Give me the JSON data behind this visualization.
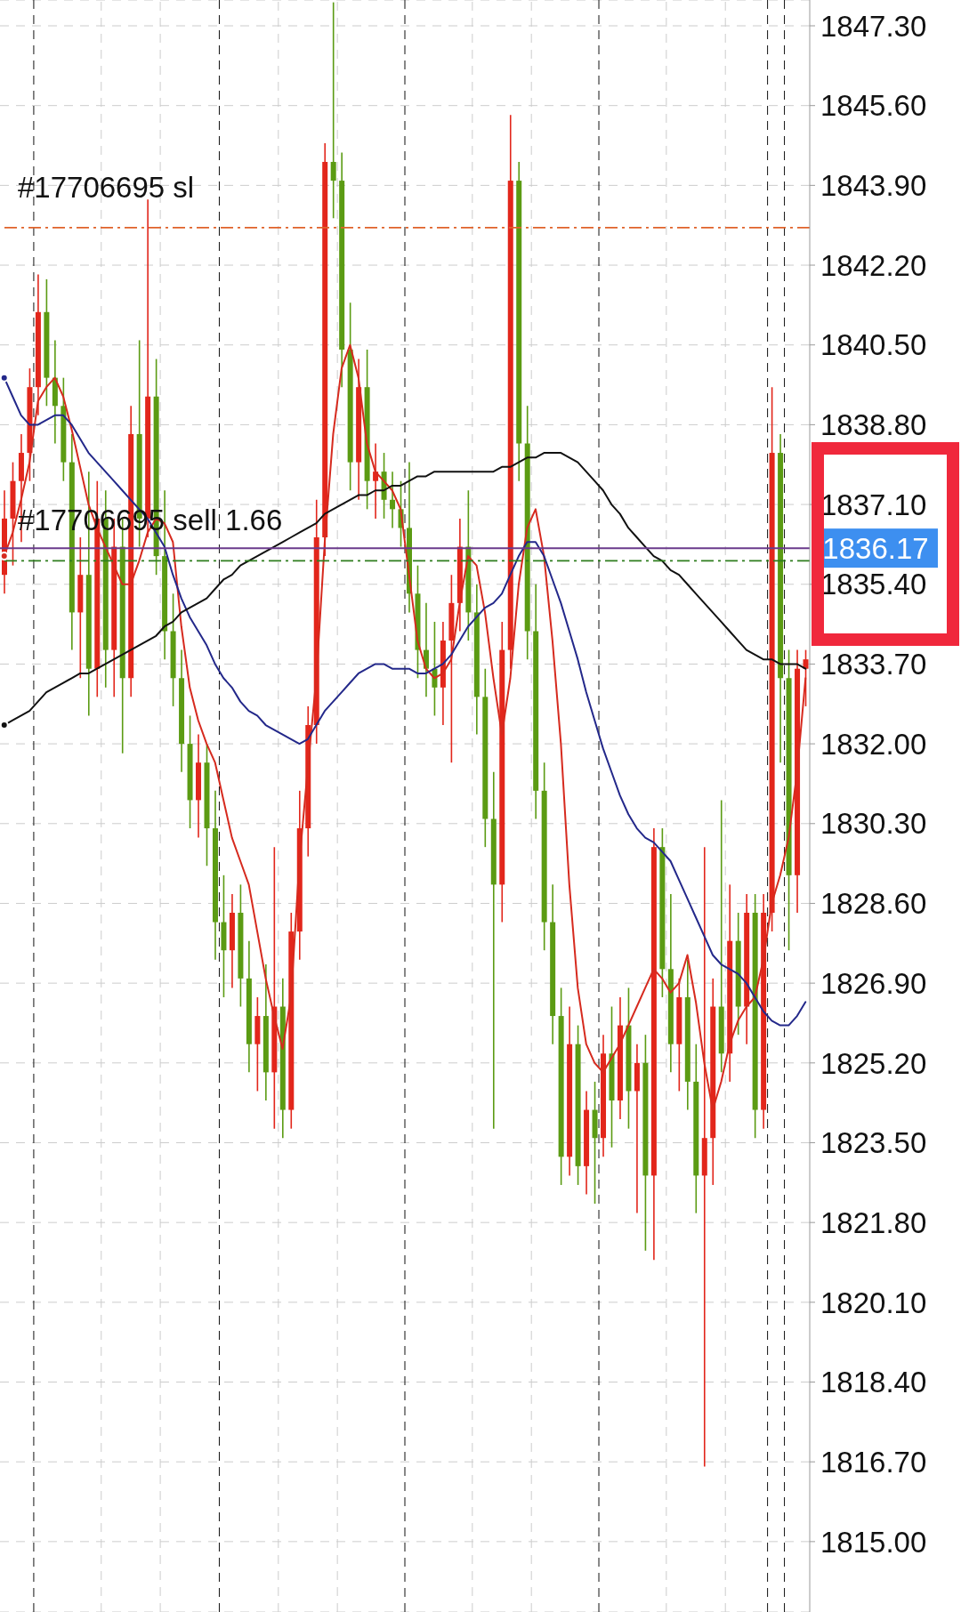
{
  "chart_data": {
    "type": "candlestick",
    "categories": [
      null,
      null,
      null,
      null,
      null,
      null,
      null,
      null,
      null,
      null,
      null,
      null,
      null,
      null,
      null,
      null,
      null,
      null,
      null,
      null,
      null,
      null,
      null,
      null,
      null,
      null,
      null,
      null,
      null,
      null,
      null,
      null,
      null,
      null,
      null,
      null,
      null,
      null,
      null,
      null,
      null,
      null,
      null,
      null,
      null,
      null,
      null,
      null,
      null,
      null,
      null,
      null,
      null,
      null,
      null,
      null,
      null,
      null,
      null,
      null,
      null,
      null,
      null,
      null,
      null,
      null,
      null,
      null,
      null,
      null,
      null,
      null,
      null,
      null,
      null,
      null,
      null,
      null,
      null,
      null,
      null,
      null,
      null,
      null,
      null,
      null,
      null,
      null,
      null,
      null,
      null,
      null,
      null,
      null,
      null,
      null
    ],
    "ohlc": [
      [
        1835.6,
        1837.4,
        1835.2,
        1836.8
      ],
      [
        1836.8,
        1838.0,
        1835.8,
        1837.6
      ],
      [
        1837.6,
        1838.6,
        1836.3,
        1838.2
      ],
      [
        1838.2,
        1840.0,
        1837.6,
        1839.6
      ],
      [
        1839.6,
        1842.0,
        1839.0,
        1841.2
      ],
      [
        1841.2,
        1841.9,
        1839.2,
        1839.8
      ],
      [
        1839.8,
        1840.6,
        1838.4,
        1839.2
      ],
      [
        1839.2,
        1839.8,
        1837.6,
        1838.0
      ],
      [
        1838.0,
        1838.6,
        1834.0,
        1834.8
      ],
      [
        1834.8,
        1836.4,
        1833.4,
        1835.6
      ],
      [
        1835.6,
        1837.8,
        1832.6,
        1833.6
      ],
      [
        1833.6,
        1837.6,
        1833.0,
        1836.8
      ],
      [
        1836.8,
        1837.4,
        1833.2,
        1834.0
      ],
      [
        1834.0,
        1836.8,
        1833.0,
        1836.2
      ],
      [
        1836.2,
        1836.8,
        1831.8,
        1833.4
      ],
      [
        1833.4,
        1839.2,
        1833.0,
        1838.6
      ],
      [
        1838.6,
        1840.6,
        1836.2,
        1836.8
      ],
      [
        1836.8,
        1843.6,
        1836.4,
        1839.4
      ],
      [
        1839.4,
        1840.2,
        1835.6,
        1836.0
      ],
      [
        1836.0,
        1837.4,
        1833.8,
        1834.4
      ],
      [
        1834.4,
        1835.2,
        1832.8,
        1833.4
      ],
      [
        1833.4,
        1834.0,
        1831.4,
        1832.0
      ],
      [
        1832.0,
        1832.6,
        1830.2,
        1830.8
      ],
      [
        1830.8,
        1832.2,
        1830.0,
        1831.6
      ],
      [
        1831.6,
        1832.0,
        1829.4,
        1830.2
      ],
      [
        1830.2,
        1831.0,
        1827.4,
        1828.2
      ],
      [
        1828.2,
        1829.2,
        1826.6,
        1827.6
      ],
      [
        1827.6,
        1828.8,
        1826.8,
        1828.4
      ],
      [
        1828.4,
        1829.0,
        1826.4,
        1827.0
      ],
      [
        1827.0,
        1827.8,
        1825.0,
        1825.6
      ],
      [
        1825.6,
        1826.6,
        1824.6,
        1826.2
      ],
      [
        1826.2,
        1827.3,
        1824.4,
        1825.0
      ],
      [
        1825.0,
        1829.8,
        1823.8,
        1826.4
      ],
      [
        1826.4,
        1827.0,
        1823.6,
        1824.2
      ],
      [
        1824.2,
        1828.4,
        1823.8,
        1828.0
      ],
      [
        1828.0,
        1831.0,
        1827.4,
        1830.2
      ],
      [
        1830.2,
        1832.8,
        1829.6,
        1832.4
      ],
      [
        1832.4,
        1837.2,
        1832.0,
        1836.4
      ],
      [
        1836.4,
        1844.8,
        1836.0,
        1844.4
      ],
      [
        1844.4,
        1847.8,
        1843.2,
        1844.0
      ],
      [
        1844.0,
        1844.6,
        1839.6,
        1840.4
      ],
      [
        1840.4,
        1841.4,
        1837.4,
        1838.0
      ],
      [
        1838.0,
        1840.2,
        1837.2,
        1839.6
      ],
      [
        1839.6,
        1840.4,
        1837.0,
        1837.6
      ],
      [
        1837.6,
        1838.4,
        1836.8,
        1837.8
      ],
      [
        1837.8,
        1838.2,
        1836.8,
        1837.2
      ],
      [
        1837.2,
        1837.8,
        1836.6,
        1837.0
      ],
      [
        1837.0,
        1837.6,
        1836.2,
        1836.6
      ],
      [
        1836.6,
        1838.0,
        1834.8,
        1835.2
      ],
      [
        1835.2,
        1835.8,
        1833.4,
        1834.0
      ],
      [
        1834.0,
        1835.0,
        1833.0,
        1833.6
      ],
      [
        1833.6,
        1834.6,
        1832.6,
        1833.2
      ],
      [
        1833.2,
        1834.6,
        1832.4,
        1834.2
      ],
      [
        1834.2,
        1835.6,
        1831.6,
        1835.0
      ],
      [
        1835.0,
        1836.8,
        1834.4,
        1836.2
      ],
      [
        1836.2,
        1837.4,
        1834.2,
        1834.8
      ],
      [
        1834.8,
        1835.4,
        1832.2,
        1833.0
      ],
      [
        1833.0,
        1833.6,
        1829.8,
        1830.4
      ],
      [
        1830.4,
        1831.4,
        1823.8,
        1829.0
      ],
      [
        1829.0,
        1834.6,
        1828.2,
        1834.0
      ],
      [
        1834.0,
        1845.4,
        1833.6,
        1844.0
      ],
      [
        1844.0,
        1844.4,
        1837.6,
        1838.4
      ],
      [
        1838.4,
        1839.2,
        1833.8,
        1834.4
      ],
      [
        1834.4,
        1835.4,
        1830.4,
        1831.0
      ],
      [
        1831.0,
        1831.6,
        1827.6,
        1828.2
      ],
      [
        1828.2,
        1829.0,
        1825.6,
        1826.2
      ],
      [
        1826.2,
        1826.8,
        1822.6,
        1823.2
      ],
      [
        1823.2,
        1826.4,
        1822.8,
        1825.6
      ],
      [
        1825.6,
        1826.0,
        1822.6,
        1823.0
      ],
      [
        1823.0,
        1824.6,
        1822.4,
        1824.2
      ],
      [
        1824.2,
        1824.8,
        1822.2,
        1823.6
      ],
      [
        1823.6,
        1825.8,
        1823.2,
        1825.4
      ],
      [
        1825.4,
        1826.4,
        1823.4,
        1824.4
      ],
      [
        1824.4,
        1826.6,
        1824.0,
        1826.0
      ],
      [
        1826.0,
        1826.8,
        1823.8,
        1824.6
      ],
      [
        1824.6,
        1825.6,
        1822.0,
        1825.2
      ],
      [
        1825.2,
        1825.8,
        1821.2,
        1822.8
      ],
      [
        1822.8,
        1830.2,
        1821.0,
        1829.8
      ],
      [
        1829.8,
        1830.2,
        1826.6,
        1827.2
      ],
      [
        1827.2,
        1828.8,
        1825.0,
        1825.6
      ],
      [
        1825.6,
        1827.0,
        1824.6,
        1826.6
      ],
      [
        1826.6,
        1827.4,
        1824.2,
        1824.8
      ],
      [
        1824.8,
        1825.6,
        1822.0,
        1822.8
      ],
      [
        1822.8,
        1829.8,
        1816.6,
        1823.6
      ],
      [
        1823.6,
        1827.0,
        1822.6,
        1826.4
      ],
      [
        1826.4,
        1830.8,
        1825.0,
        1825.4
      ],
      [
        1825.4,
        1829.0,
        1824.8,
        1827.8
      ],
      [
        1827.8,
        1828.4,
        1825.8,
        1826.4
      ],
      [
        1826.4,
        1828.8,
        1825.6,
        1828.4
      ],
      [
        1828.4,
        1828.8,
        1823.6,
        1824.2
      ],
      [
        1824.2,
        1828.8,
        1823.8,
        1828.4
      ],
      [
        1828.4,
        1839.6,
        1828.0,
        1838.2
      ],
      [
        1838.2,
        1838.6,
        1831.6,
        1833.4
      ],
      [
        1833.4,
        1834.0,
        1827.6,
        1829.2
      ],
      [
        1829.2,
        1834.0,
        1828.4,
        1833.6
      ],
      [
        1833.6,
        1834.0,
        1832.8,
        1833.8
      ]
    ],
    "colors": [
      "#e2261b",
      "#e2261b",
      "#e2261b",
      "#e2261b",
      "#e2261b",
      "#5b9b13",
      "#5b9b13",
      "#5b9b13",
      "#5b9b13",
      "#e2261b",
      "#5b9b13",
      "#e2261b",
      "#5b9b13",
      "#e2261b",
      "#5b9b13",
      "#e2261b",
      "#5b9b13",
      "#e2261b",
      "#5b9b13",
      "#5b9b13",
      "#5b9b13",
      "#5b9b13",
      "#5b9b13",
      "#e2261b",
      "#5b9b13",
      "#5b9b13",
      "#5b9b13",
      "#e2261b",
      "#5b9b13",
      "#5b9b13",
      "#e2261b",
      "#5b9b13",
      "#e2261b",
      "#5b9b13",
      "#e2261b",
      "#e2261b",
      "#e2261b",
      "#e2261b",
      "#e2261b",
      "#5b9b13",
      "#5b9b13",
      "#5b9b13",
      "#e2261b",
      "#5b9b13",
      "#e2261b",
      "#5b9b13",
      "#5b9b13",
      "#5b9b13",
      "#5b9b13",
      "#5b9b13",
      "#5b9b13",
      "#5b9b13",
      "#e2261b",
      "#e2261b",
      "#e2261b",
      "#5b9b13",
      "#5b9b13",
      "#5b9b13",
      "#5b9b13",
      "#e2261b",
      "#e2261b",
      "#5b9b13",
      "#5b9b13",
      "#5b9b13",
      "#5b9b13",
      "#5b9b13",
      "#5b9b13",
      "#e2261b",
      "#5b9b13",
      "#e2261b",
      "#5b9b13",
      "#e2261b",
      "#5b9b13",
      "#e2261b",
      "#5b9b13",
      "#e2261b",
      "#5b9b13",
      "#e2261b",
      "#5b9b13",
      "#5b9b13",
      "#e2261b",
      "#5b9b13",
      "#5b9b13",
      "#e2261b",
      "#e2261b",
      "#5b9b13",
      "#e2261b",
      "#5b9b13",
      "#e2261b",
      "#5b9b13",
      "#e2261b",
      "#e2261b",
      "#5b9b13",
      "#5b9b13",
      "#e2261b",
      "#e2261b"
    ],
    "series": [
      {
        "type": "line",
        "color": "#d62a1e",
        "values": [
          1836.0,
          1836.5,
          1837.2,
          1838.0,
          1839.3,
          1839.6,
          1839.8,
          1839.4,
          1838.7,
          1837.9,
          1837.1,
          1836.6,
          1836.2,
          1835.8,
          1835.4,
          1835.4,
          1835.9,
          1836.5,
          1836.8,
          1836.7,
          1836.3,
          1834.5,
          1833.2,
          1832.5,
          1832.0,
          1831.6,
          1830.8,
          1830.0,
          1829.5,
          1829.0,
          1828.0,
          1827.0,
          1826.2,
          1825.5,
          1826.6,
          1829.5,
          1831.5,
          1833.4,
          1836.3,
          1838.6,
          1840.0,
          1840.5,
          1839.8,
          1838.4,
          1837.8,
          1837.6,
          1837.4,
          1837.0,
          1835.6,
          1834.2,
          1833.6,
          1833.4,
          1833.5,
          1833.8,
          1835.0,
          1836.0,
          1835.8,
          1834.8,
          1833.4,
          1832.2,
          1833.4,
          1835.4,
          1836.6,
          1837.0,
          1836.0,
          1834.2,
          1832.0,
          1829.0,
          1826.8,
          1825.6,
          1825.2,
          1825.0,
          1825.3,
          1825.6,
          1826.0,
          1826.4,
          1826.8,
          1827.2,
          1827.0,
          1826.7,
          1826.9,
          1827.5,
          1826.5,
          1825.2,
          1824.2,
          1824.8,
          1825.6,
          1826.1,
          1826.4,
          1826.6,
          1827.4,
          1828.6,
          1829.2,
          1830.0,
          1831.4,
          1833.4
        ]
      },
      {
        "type": "line",
        "color": "#23288a",
        "values": [
          1839.8,
          1839.4,
          1839.0,
          1838.8,
          1838.8,
          1838.9,
          1839.0,
          1839.0,
          1838.8,
          1838.5,
          1838.2,
          1838.0,
          1837.8,
          1837.6,
          1837.4,
          1837.2,
          1837.0,
          1836.8,
          1836.5,
          1836.2,
          1835.6,
          1835.1,
          1834.7,
          1834.4,
          1834.1,
          1833.7,
          1833.4,
          1833.2,
          1832.9,
          1832.7,
          1832.6,
          1832.4,
          1832.3,
          1832.2,
          1832.1,
          1832.0,
          1832.1,
          1832.4,
          1832.7,
          1832.9,
          1833.1,
          1833.3,
          1833.5,
          1833.6,
          1833.7,
          1833.7,
          1833.6,
          1833.6,
          1833.6,
          1833.5,
          1833.5,
          1833.6,
          1833.7,
          1833.9,
          1834.2,
          1834.5,
          1834.7,
          1834.9,
          1835.0,
          1835.2,
          1835.6,
          1836.0,
          1836.3,
          1836.3,
          1836.0,
          1835.5,
          1835.0,
          1834.4,
          1833.8,
          1833.1,
          1832.5,
          1831.9,
          1831.4,
          1830.9,
          1830.5,
          1830.2,
          1830.0,
          1829.9,
          1829.7,
          1829.5,
          1829.1,
          1828.7,
          1828.3,
          1827.9,
          1827.5,
          1827.3,
          1827.2,
          1827.1,
          1826.9,
          1826.6,
          1826.3,
          1826.1,
          1826.0,
          1826.0,
          1826.2,
          1826.5
        ]
      },
      {
        "type": "line",
        "color": "#111111",
        "values": [
          1832.4,
          1832.5,
          1832.6,
          1832.7,
          1832.9,
          1833.1,
          1833.2,
          1833.3,
          1833.4,
          1833.5,
          1833.5,
          1833.6,
          1833.7,
          1833.8,
          1833.9,
          1834.0,
          1834.1,
          1834.2,
          1834.3,
          1834.5,
          1834.6,
          1834.8,
          1834.9,
          1835.0,
          1835.1,
          1835.3,
          1835.5,
          1835.6,
          1835.8,
          1835.9,
          1836.0,
          1836.1,
          1836.2,
          1836.3,
          1836.4,
          1836.5,
          1836.6,
          1836.7,
          1836.9,
          1837.0,
          1837.1,
          1837.2,
          1837.3,
          1837.3,
          1837.4,
          1837.4,
          1837.5,
          1837.5,
          1837.6,
          1837.7,
          1837.7,
          1837.8,
          1837.8,
          1837.8,
          1837.8,
          1837.8,
          1837.8,
          1837.8,
          1837.8,
          1837.9,
          1837.9,
          1838.0,
          1838.1,
          1838.1,
          1838.2,
          1838.2,
          1838.2,
          1838.1,
          1838.0,
          1837.8,
          1837.6,
          1837.4,
          1837.1,
          1836.9,
          1836.6,
          1836.4,
          1836.2,
          1836.0,
          1835.9,
          1835.7,
          1835.6,
          1835.4,
          1835.2,
          1835.0,
          1834.8,
          1834.6,
          1834.4,
          1834.2,
          1834.0,
          1833.9,
          1833.8,
          1833.8,
          1833.7,
          1833.7,
          1833.7,
          1833.6
        ]
      }
    ],
    "ylim": [
      1813.5,
      1847.85
    ],
    "yticks": [
      {
        "value": 1815.0,
        "label": "1815.00"
      },
      {
        "value": 1816.7,
        "label": "1816.70"
      },
      {
        "value": 1818.4,
        "label": "1818.40"
      },
      {
        "value": 1820.1,
        "label": "1820.10"
      },
      {
        "value": 1821.8,
        "label": "1821.80"
      },
      {
        "value": 1823.5,
        "label": "1823.50"
      },
      {
        "value": 1825.2,
        "label": "1825.20"
      },
      {
        "value": 1826.9,
        "label": "1826.90"
      },
      {
        "value": 1828.6,
        "label": "1828.60"
      },
      {
        "value": 1830.3,
        "label": "1830.30"
      },
      {
        "value": 1832.0,
        "label": "1832.00"
      },
      {
        "value": 1833.7,
        "label": "1833.70"
      },
      {
        "value": 1835.4,
        "label": "1835.40"
      },
      {
        "value": 1837.1,
        "label": "1837.10"
      },
      {
        "value": 1838.8,
        "label": "1838.80"
      },
      {
        "value": 1840.5,
        "label": "1840.50"
      },
      {
        "value": 1842.2,
        "label": "1842.20"
      },
      {
        "value": 1843.9,
        "label": "1843.90"
      },
      {
        "value": 1845.6,
        "label": "1845.60"
      },
      {
        "value": 1847.3,
        "label": "1847.30"
      }
    ],
    "ref_lines": [
      {
        "axis": "y",
        "value": 1843.0,
        "label": "#17706695 sl",
        "color": "#e0622a",
        "line_style": "dashed"
      },
      {
        "axis": "y",
        "value": 1836.17,
        "label": "1836.17",
        "color": "#6a3a8c",
        "line_style": "solid"
      },
      {
        "axis": "y",
        "value": 1835.9,
        "label": "#17706695 sell 1.66",
        "color": "#2e7d1e",
        "line_style": "dashed"
      }
    ],
    "grid": true,
    "tick_labels": "y"
  }
}
